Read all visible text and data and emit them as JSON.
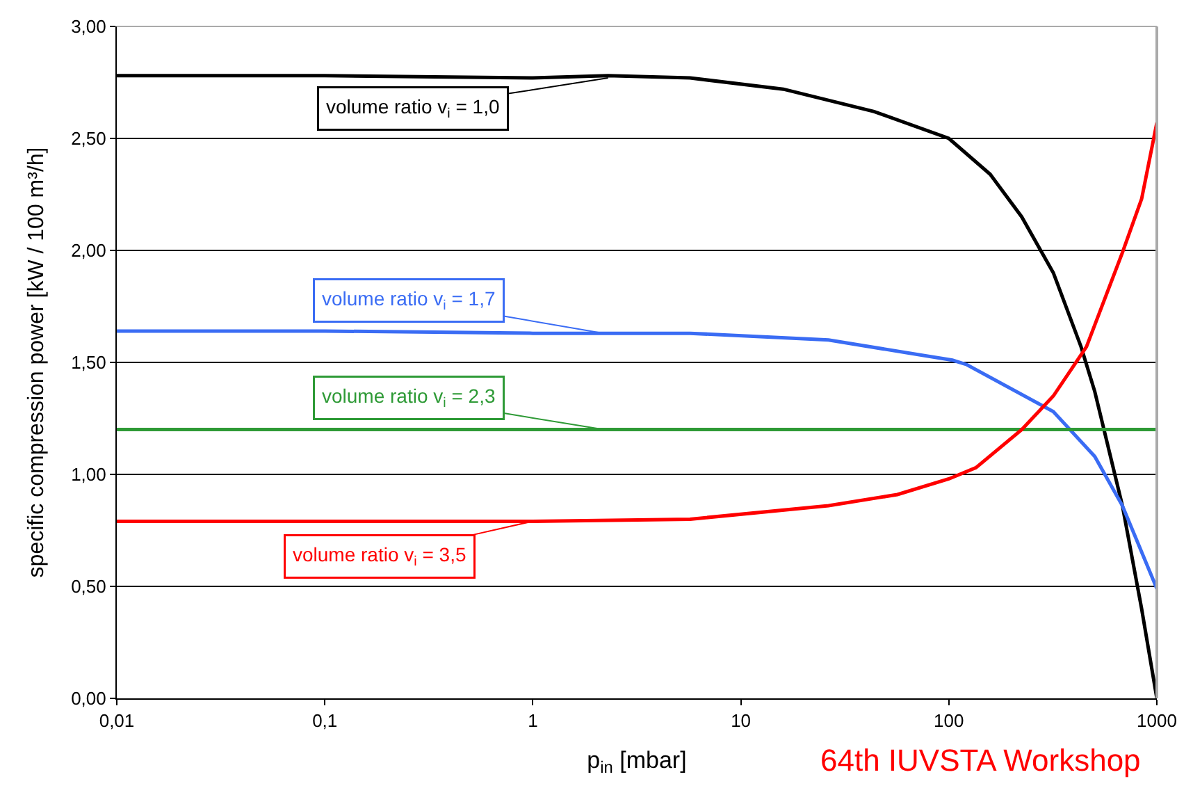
{
  "chart_data": {
    "type": "line",
    "xlabel": "p$_{in}$ [mbar]",
    "ylabel": "specific compression power [kW / 100 m³/h]",
    "log": "x",
    "xlim": [
      0.01,
      1000
    ],
    "xticks": [
      {
        "value": 0.01,
        "label": "0,01"
      },
      {
        "value": 0.1,
        "label": "0,1"
      },
      1,
      10,
      100,
      1000
    ],
    "ylim": [
      0,
      3
    ],
    "yticks": [
      {
        "value": 0,
        "label": "0,00"
      },
      {
        "value": 0.5,
        "label": "0,50"
      },
      {
        "value": 1,
        "label": "1,00"
      },
      {
        "value": 1.5,
        "label": "1,50"
      },
      {
        "value": 2,
        "label": "2,00"
      },
      {
        "value": 2.5,
        "label": "2,50"
      },
      {
        "value": 3,
        "label": "3,00"
      }
    ],
    "grid": "y",
    "marker": "none",
    "line_style": "solid",
    "series": [
      {
        "color": "#000000",
        "x": [
          0.01,
          0.1,
          1,
          2.3,
          5.7,
          16,
          43.7,
          100,
          158,
          224,
          318,
          432,
          503,
          683,
          845,
          1000
        ],
        "values": [
          2.78,
          2.78,
          2.77,
          2.78,
          2.77,
          2.72,
          2.62,
          2.5,
          2.34,
          2.15,
          1.9,
          1.57,
          1.37,
          0.86,
          0.4,
          0.0
        ]
      },
      {
        "color": "#3a6cf4",
        "x": [
          0.01,
          0.1,
          1,
          5.7,
          26.4,
          104,
          122,
          318,
          503,
          683,
          1000
        ],
        "values": [
          1.64,
          1.64,
          1.63,
          1.63,
          1.6,
          1.51,
          1.49,
          1.28,
          1.08,
          0.86,
          0.49
        ]
      },
      {
        "color": "#2e9a36",
        "x": [
          0.01,
          1000
        ],
        "values": [
          1.2,
          1.2
        ]
      },
      {
        "color": "#ff0000",
        "x": [
          0.01,
          0.1,
          1,
          5.7,
          26.4,
          56.6,
          100,
          135,
          224,
          318,
          459,
          683,
          845,
          1000
        ],
        "values": [
          0.79,
          0.79,
          0.79,
          0.8,
          0.86,
          0.91,
          0.98,
          1.03,
          1.2,
          1.35,
          1.57,
          1.99,
          2.23,
          2.57
        ]
      }
    ],
    "annotations": [
      {
        "text": "volume ratio v$_{i}$ = 1,0",
        "x": 2.3,
        "y": 2.77
      },
      {
        "text": "volume ratio v$_{i}$ = 1,7",
        "x": 2.19,
        "y": 1.63
      },
      {
        "text": "volume ratio v$_{i}$ = 2,3",
        "x": 2.19,
        "y": 1.2
      },
      {
        "text": "volume ratio v$_{i}$ = 3,5",
        "x": 0.99,
        "y": 0.79
      },
      "64th IUVSTA Workshop"
    ]
  }
}
